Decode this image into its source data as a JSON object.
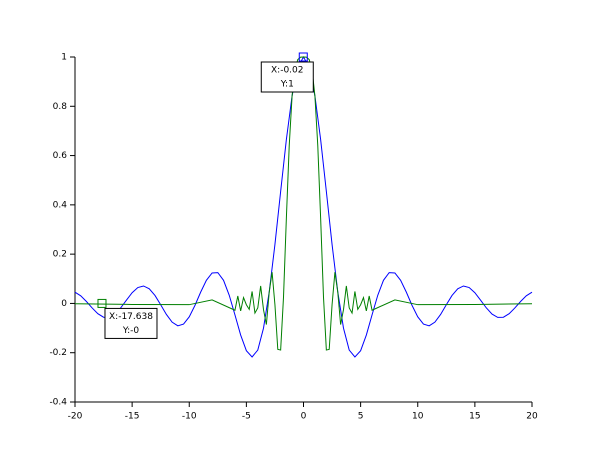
{
  "chart_data": {
    "type": "line",
    "xlim": [
      -20,
      20
    ],
    "xticks": [
      -20,
      -15,
      -10,
      -5,
      0,
      5,
      10,
      15,
      20
    ],
    "ylim": [
      -0.4,
      1
    ],
    "yticks": [
      -0.4,
      -0.2,
      0,
      0.2,
      0.4,
      0.6,
      0.8,
      1
    ],
    "series": [
      {
        "color": "#0000ff",
        "x": [
          -20,
          -19.5,
          -19,
          -18.5,
          -18,
          -17.5,
          -17,
          -16.5,
          -16,
          -15.5,
          -15,
          -14.5,
          -14,
          -13.5,
          -13,
          -12.5,
          -12,
          -11.5,
          -11,
          -10.5,
          -10,
          -9.5,
          -9,
          -8.5,
          -8,
          -7.5,
          -7,
          -6.5,
          -6,
          -5.5,
          -5,
          -4.5,
          -4,
          -3.5,
          -3,
          -2.5,
          -2,
          -1.5,
          -1,
          -0.5,
          0,
          0.5,
          1,
          1.5,
          2,
          2.5,
          3,
          3.5,
          4,
          4.5,
          5,
          5.5,
          6,
          6.5,
          7,
          7.5,
          8,
          8.5,
          9,
          9.5,
          10,
          10.5,
          11,
          11.5,
          12,
          12.5,
          13,
          13.5,
          14,
          14.5,
          15,
          15.5,
          16,
          16.5,
          17,
          17.5,
          18,
          18.5,
          19,
          19.5,
          20
        ],
        "values": [
          0.0456,
          0.0311,
          0.0079,
          -0.0183,
          -0.0417,
          -0.056,
          -0.0566,
          -0.0432,
          -0.018,
          0.0133,
          0.0434,
          0.0645,
          0.0708,
          0.0595,
          0.0323,
          -0.0053,
          -0.0447,
          -0.0761,
          -0.0909,
          -0.0838,
          -0.0544,
          -0.0079,
          0.0458,
          0.0939,
          0.1237,
          0.1251,
          0.0939,
          0.0331,
          -0.0466,
          -0.1283,
          -0.1918,
          -0.2172,
          -0.1892,
          -0.1002,
          0.047,
          0.2394,
          0.4546,
          0.665,
          0.8415,
          0.9589,
          1,
          0.9589,
          0.8415,
          0.665,
          0.4546,
          0.2394,
          0.047,
          -0.1002,
          -0.1892,
          -0.2172,
          -0.1918,
          -0.1283,
          -0.0466,
          0.0331,
          0.0939,
          0.1251,
          0.1237,
          0.0939,
          0.0458,
          -0.0079,
          -0.0544,
          -0.0838,
          -0.0909,
          -0.0761,
          -0.0447,
          -0.0053,
          0.0323,
          0.0595,
          0.0708,
          0.0645,
          0.0434,
          0.0133,
          -0.018,
          -0.0432,
          -0.0566,
          -0.056,
          -0.0417,
          -0.0183,
          0.0079,
          0.0311,
          0.0456
        ]
      },
      {
        "color": "#007f00",
        "x": [
          -20,
          -15,
          -10,
          -8,
          -6,
          -5.75,
          -5.5,
          -5.25,
          -5,
          -4.75,
          -4.5,
          -4.25,
          -4,
          -3.75,
          -3.5,
          -3.25,
          -3,
          -2.75,
          -2.5,
          -2.25,
          -2,
          -1.75,
          -1.5,
          -1.25,
          -1,
          -0.75,
          -0.5,
          -0.25,
          0,
          0.25,
          0.5,
          0.75,
          1,
          1.25,
          1.5,
          1.75,
          2,
          2.25,
          2.5,
          2.75,
          3,
          3.25,
          3.5,
          3.75,
          4,
          4.25,
          4.5,
          4.75,
          5,
          5.25,
          5.5,
          5.75,
          6,
          8,
          10,
          15,
          20
        ],
        "values": [
          -0.0013,
          -0.0041,
          -0.0051,
          0.0144,
          -0.0276,
          0.0302,
          -0.0304,
          0.0237,
          -0.0053,
          -0.024,
          0.0487,
          -0.0392,
          -0.018,
          0.0709,
          -0.0254,
          -0.0858,
          0.0458,
          0.1267,
          -0.0053,
          -0.1865,
          -0.1892,
          0.0258,
          0.3458,
          0.64,
          0.8415,
          0.948,
          0.9896,
          0.9993,
          1,
          0.9993,
          0.9896,
          0.948,
          0.8415,
          0.64,
          0.3458,
          0.0258,
          -0.1892,
          -0.1865,
          -0.0053,
          0.1267,
          0.0458,
          -0.0858,
          -0.0254,
          0.0709,
          -0.018,
          -0.0392,
          0.0487,
          -0.024,
          -0.0053,
          0.0237,
          -0.0304,
          0.0302,
          -0.0276,
          0.0144,
          -0.0051,
          -0.0041,
          -0.0013
        ]
      }
    ],
    "datatips": [
      {
        "x": -0.02,
        "y": 1,
        "lines": [
          "X:-0.02",
          "Y:1"
        ]
      },
      {
        "x": -17.638,
        "y": 0,
        "lines": [
          "X:-17.638",
          "Y:-0"
        ]
      }
    ]
  }
}
